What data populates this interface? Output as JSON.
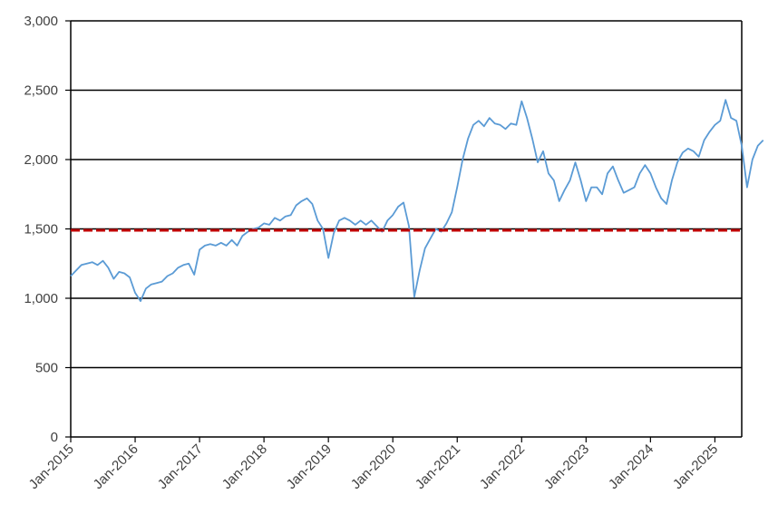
{
  "chart_data": {
    "type": "line",
    "title": "",
    "xlabel": "",
    "ylabel": "",
    "ylim": [
      0,
      3000
    ],
    "y_ticks": [
      0,
      500,
      1000,
      1500,
      2000,
      2500,
      3000
    ],
    "y_tick_labels": [
      "0",
      "500",
      "1,000",
      "1,500",
      "2,000",
      "2,500",
      "3,000"
    ],
    "x_range": [
      "2015-01",
      "2025-06"
    ],
    "x_ticks": [
      "Jan-2015",
      "Jan-2016",
      "Jan-2017",
      "Jan-2018",
      "Jan-2019",
      "Jan-2020",
      "Jan-2021",
      "Jan-2022",
      "Jan-2023",
      "Jan-2024",
      "Jan-2025"
    ],
    "grid": "horizontal",
    "legend": "none",
    "series": [
      {
        "color": "#5b9bd5",
        "style": "line",
        "points": [
          [
            "2015-01",
            1160
          ],
          [
            "2015-02",
            1200
          ],
          [
            "2015-03",
            1240
          ],
          [
            "2015-04",
            1250
          ],
          [
            "2015-05",
            1260
          ],
          [
            "2015-06",
            1240
          ],
          [
            "2015-07",
            1270
          ],
          [
            "2015-08",
            1220
          ],
          [
            "2015-09",
            1140
          ],
          [
            "2015-10",
            1190
          ],
          [
            "2015-11",
            1180
          ],
          [
            "2015-12",
            1150
          ],
          [
            "2016-01",
            1040
          ],
          [
            "2016-02",
            980
          ],
          [
            "2016-03",
            1070
          ],
          [
            "2016-04",
            1100
          ],
          [
            "2016-05",
            1110
          ],
          [
            "2016-06",
            1120
          ],
          [
            "2016-07",
            1160
          ],
          [
            "2016-08",
            1180
          ],
          [
            "2016-09",
            1220
          ],
          [
            "2016-10",
            1240
          ],
          [
            "2016-11",
            1250
          ],
          [
            "2016-12",
            1170
          ],
          [
            "2017-01",
            1350
          ],
          [
            "2017-02",
            1380
          ],
          [
            "2017-03",
            1390
          ],
          [
            "2017-04",
            1380
          ],
          [
            "2017-05",
            1400
          ],
          [
            "2017-06",
            1380
          ],
          [
            "2017-07",
            1420
          ],
          [
            "2017-08",
            1380
          ],
          [
            "2017-09",
            1450
          ],
          [
            "2017-10",
            1480
          ],
          [
            "2017-11",
            1500
          ],
          [
            "2017-12",
            1510
          ],
          [
            "2018-01",
            1540
          ],
          [
            "2018-02",
            1530
          ],
          [
            "2018-03",
            1580
          ],
          [
            "2018-04",
            1560
          ],
          [
            "2018-05",
            1590
          ],
          [
            "2018-06",
            1600
          ],
          [
            "2018-07",
            1670
          ],
          [
            "2018-08",
            1700
          ],
          [
            "2018-09",
            1720
          ],
          [
            "2018-10",
            1680
          ],
          [
            "2018-11",
            1560
          ],
          [
            "2018-12",
            1500
          ],
          [
            "2019-01",
            1290
          ],
          [
            "2019-02",
            1470
          ],
          [
            "2019-03",
            1560
          ],
          [
            "2019-04",
            1580
          ],
          [
            "2019-05",
            1560
          ],
          [
            "2019-06",
            1530
          ],
          [
            "2019-07",
            1560
          ],
          [
            "2019-08",
            1530
          ],
          [
            "2019-09",
            1560
          ],
          [
            "2019-10",
            1520
          ],
          [
            "2019-11",
            1480
          ],
          [
            "2019-12",
            1560
          ],
          [
            "2020-01",
            1600
          ],
          [
            "2020-02",
            1660
          ],
          [
            "2020-03",
            1690
          ],
          [
            "2020-04",
            1520
          ],
          [
            "2020-05",
            1010
          ],
          [
            "2020-06",
            1200
          ],
          [
            "2020-07",
            1360
          ],
          [
            "2020-08",
            1430
          ],
          [
            "2020-09",
            1500
          ],
          [
            "2020-10",
            1480
          ],
          [
            "2020-11",
            1540
          ],
          [
            "2020-12",
            1620
          ],
          [
            "2021-01",
            1800
          ],
          [
            "2021-02",
            2000
          ],
          [
            "2021-03",
            2150
          ],
          [
            "2021-04",
            2250
          ],
          [
            "2021-05",
            2280
          ],
          [
            "2021-06",
            2240
          ],
          [
            "2021-07",
            2300
          ],
          [
            "2021-08",
            2260
          ],
          [
            "2021-09",
            2250
          ],
          [
            "2021-10",
            2220
          ],
          [
            "2021-11",
            2260
          ],
          [
            "2021-12",
            2250
          ],
          [
            "2022-01",
            2420
          ],
          [
            "2022-02",
            2300
          ],
          [
            "2022-03",
            2150
          ],
          [
            "2022-04",
            1980
          ],
          [
            "2022-05",
            2060
          ],
          [
            "2022-06",
            1900
          ],
          [
            "2022-07",
            1850
          ],
          [
            "2022-08",
            1700
          ],
          [
            "2022-09",
            1780
          ],
          [
            "2022-10",
            1850
          ],
          [
            "2022-11",
            1980
          ],
          [
            "2022-12",
            1850
          ],
          [
            "2023-01",
            1700
          ],
          [
            "2023-02",
            1800
          ],
          [
            "2023-03",
            1800
          ],
          [
            "2023-04",
            1750
          ],
          [
            "2023-05",
            1900
          ],
          [
            "2023-06",
            1950
          ],
          [
            "2023-07",
            1850
          ],
          [
            "2023-08",
            1760
          ],
          [
            "2023-09",
            1780
          ],
          [
            "2023-10",
            1800
          ],
          [
            "2023-11",
            1900
          ],
          [
            "2023-12",
            1960
          ],
          [
            "2024-01",
            1900
          ],
          [
            "2024-02",
            1800
          ],
          [
            "2024-03",
            1720
          ],
          [
            "2024-04",
            1680
          ],
          [
            "2024-05",
            1850
          ],
          [
            "2024-06",
            1980
          ],
          [
            "2024-07",
            2050
          ],
          [
            "2024-08",
            2080
          ],
          [
            "2024-09",
            2060
          ],
          [
            "2024-10",
            2020
          ],
          [
            "2024-11",
            2140
          ],
          [
            "2024-12",
            2200
          ],
          [
            "2025-01",
            2250
          ],
          [
            "2025-02",
            2280
          ],
          [
            "2025-03",
            2430
          ],
          [
            "2025-04",
            2300
          ],
          [
            "2025-05",
            2280
          ],
          [
            "2025-06",
            2100
          ],
          [
            "2025-07",
            1800
          ],
          [
            "2025-08",
            2000
          ],
          [
            "2025-09",
            2100
          ],
          [
            "2025-10",
            2140
          ]
        ]
      }
    ],
    "reference_line": {
      "y": 1490,
      "color": "#c00000",
      "style": "dashed"
    }
  }
}
